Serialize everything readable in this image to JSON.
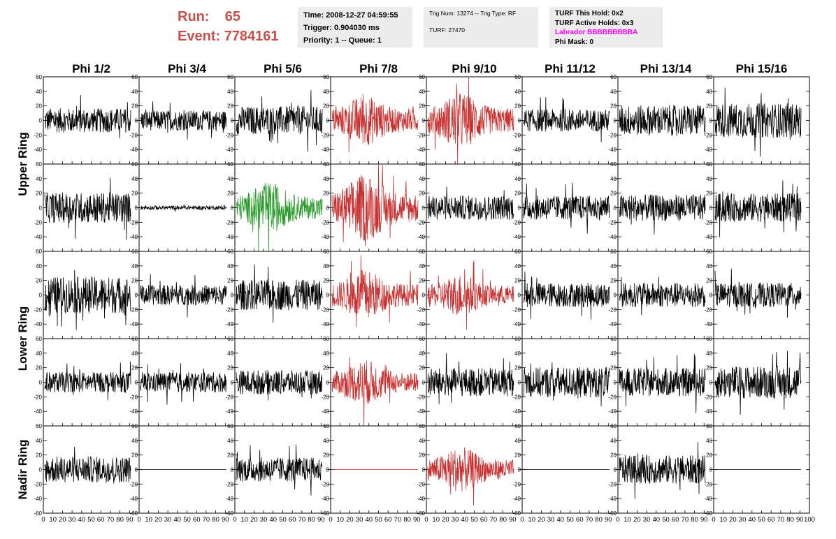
{
  "header": {
    "run_label": "Run:",
    "run_value": "65",
    "event_label": "Event:",
    "event_value": "7784161"
  },
  "info_box_1": {
    "time": "Time: 2008-12-27 04:59:55",
    "trigger": "Trigger: 0.904030 ms",
    "priority": "Priority: 1 -- Queue: 1"
  },
  "info_box_2": {
    "trig": "Trig Num: 13274 -- Trig Type: RF",
    "turf": "TURF: 27470"
  },
  "info_box_3": {
    "hold": "TURF This Hold: 0x2",
    "active": "TURF Active Holds: 0x3",
    "labrador": "Labrador BBBBBBBBBA",
    "phimask": "Phi Mask: 0"
  },
  "chart_data": {
    "type": "line",
    "columns": [
      "Phi 1/2",
      "Phi 3/4",
      "Phi 5/6",
      "Phi 7/8",
      "Phi 9/10",
      "Phi 11/12",
      "Phi 13/14",
      "Phi 15/16"
    ],
    "rows": [
      "Upper Ring",
      "Lower Ring",
      "Nadir Ring"
    ],
    "xlim": [
      0,
      100
    ],
    "ylim": [
      -60,
      60
    ],
    "x_tick_labels": [
      "0",
      "10",
      "20",
      "30",
      "40",
      "50",
      "60",
      "70",
      "80",
      "90",
      "100"
    ],
    "y_tick_labels": [
      "-60",
      "-40",
      "-20",
      "0",
      "20",
      "40",
      "60"
    ],
    "colors": {
      "normal": "#000000",
      "triggered": "#c8302f",
      "labrador": "#2a9a2a"
    },
    "panels": [
      [
        {
          "amp": 12,
          "color": "normal"
        },
        {
          "amp": 10,
          "color": "normal"
        },
        {
          "amp": 14,
          "color": "normal"
        },
        {
          "amp": 18,
          "color": "triggered"
        },
        {
          "amp": 20,
          "color": "triggered"
        },
        {
          "amp": 11,
          "color": "normal"
        },
        {
          "amp": 15,
          "color": "normal"
        },
        {
          "amp": 17,
          "color": "normal"
        }
      ],
      [
        {
          "amp": 15,
          "color": "normal"
        },
        {
          "amp": 2,
          "color": "normal"
        },
        {
          "amp": 18,
          "color": "labrador"
        },
        {
          "amp": 24,
          "color": "triggered"
        },
        {
          "amp": 12,
          "color": "normal"
        },
        {
          "amp": 12,
          "color": "normal"
        },
        {
          "amp": 13,
          "color": "normal"
        },
        {
          "amp": 14,
          "color": "normal"
        }
      ],
      [
        {
          "amp": 18,
          "color": "normal"
        },
        {
          "amp": 10,
          "color": "normal"
        },
        {
          "amp": 15,
          "color": "normal"
        },
        {
          "amp": 18,
          "color": "triggered"
        },
        {
          "amp": 15,
          "color": "triggered"
        },
        {
          "amp": 12,
          "color": "normal"
        },
        {
          "amp": 12,
          "color": "normal"
        },
        {
          "amp": 12,
          "color": "normal"
        }
      ],
      [
        {
          "amp": 10,
          "color": "normal"
        },
        {
          "amp": 10,
          "color": "normal"
        },
        {
          "amp": 12,
          "color": "normal"
        },
        {
          "amp": 16,
          "color": "triggered"
        },
        {
          "amp": 14,
          "color": "normal"
        },
        {
          "amp": 15,
          "color": "normal"
        },
        {
          "amp": 14,
          "color": "normal"
        },
        {
          "amp": 16,
          "color": "normal"
        }
      ],
      [
        {
          "amp": 13,
          "color": "normal"
        },
        {
          "amp": 0,
          "color": "normal"
        },
        {
          "amp": 12,
          "color": "normal"
        },
        {
          "amp": 0,
          "color": "triggered"
        },
        {
          "amp": 16,
          "color": "triggered"
        },
        {
          "amp": 0,
          "color": "normal"
        },
        {
          "amp": 14,
          "color": "normal"
        },
        {
          "amp": 0,
          "color": "normal"
        }
      ]
    ]
  }
}
